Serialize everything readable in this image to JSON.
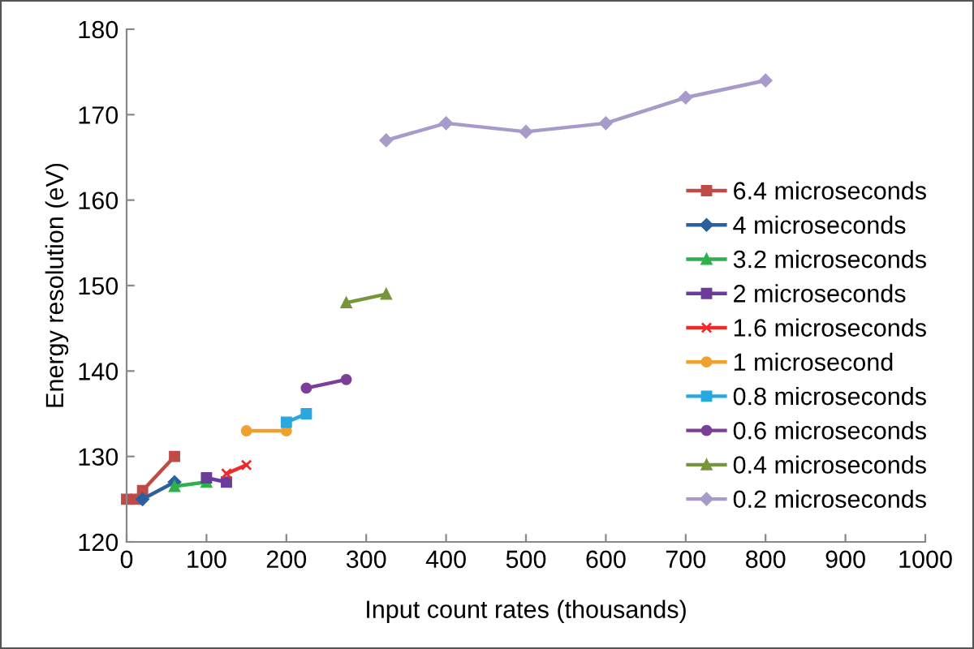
{
  "chart_data": {
    "type": "line",
    "xlabel": "Input count rates (thousands)",
    "ylabel": "Energy resolution (eV)",
    "xlim": [
      0,
      1000
    ],
    "xticks": [
      0,
      100,
      200,
      300,
      400,
      500,
      600,
      700,
      800,
      900,
      1000
    ],
    "ylim": [
      120,
      180
    ],
    "yticks": [
      120,
      130,
      140,
      150,
      160,
      170,
      180
    ],
    "grid": false,
    "legend": "right",
    "series": [
      {
        "name": "6.4 microseconds",
        "color": "#be4b48",
        "marker": "square",
        "x": [
          0,
          12,
          20,
          60
        ],
        "values": [
          125,
          125,
          126,
          130
        ]
      },
      {
        "name": "4 microseconds",
        "color": "#2c5f9e",
        "marker": "diamond",
        "x": [
          20,
          60
        ],
        "values": [
          125,
          127
        ]
      },
      {
        "name": "3.2 microseconds",
        "color": "#2eb04a",
        "marker": "triangle",
        "x": [
          60,
          100
        ],
        "values": [
          126.5,
          127
        ]
      },
      {
        "name": "2 microseconds",
        "color": "#6a3d9a",
        "marker": "square",
        "x": [
          100,
          125
        ],
        "values": [
          127.5,
          127
        ]
      },
      {
        "name": "1.6 microseconds",
        "color": "#ee2a2a",
        "marker": "cross",
        "x": [
          125,
          150
        ],
        "values": [
          128,
          129
        ]
      },
      {
        "name": "1 microsecond",
        "color": "#f0a030",
        "marker": "circle",
        "x": [
          150,
          200
        ],
        "values": [
          133,
          133
        ]
      },
      {
        "name": "0.8 microseconds",
        "color": "#29a8e0",
        "marker": "square",
        "x": [
          200,
          225
        ],
        "values": [
          134,
          135
        ]
      },
      {
        "name": "0.6 microseconds",
        "color": "#7b3f98",
        "marker": "circle",
        "x": [
          225,
          275
        ],
        "values": [
          138,
          139
        ]
      },
      {
        "name": "0.4 microseconds",
        "color": "#77963a",
        "marker": "triangle",
        "x": [
          275,
          325
        ],
        "values": [
          148,
          149
        ]
      },
      {
        "name": "0.2 microseconds",
        "color": "#a99bc9",
        "marker": "diamond",
        "x": [
          325,
          400,
          500,
          600,
          700,
          800
        ],
        "values": [
          167,
          169,
          168,
          169,
          172,
          174
        ]
      }
    ]
  }
}
